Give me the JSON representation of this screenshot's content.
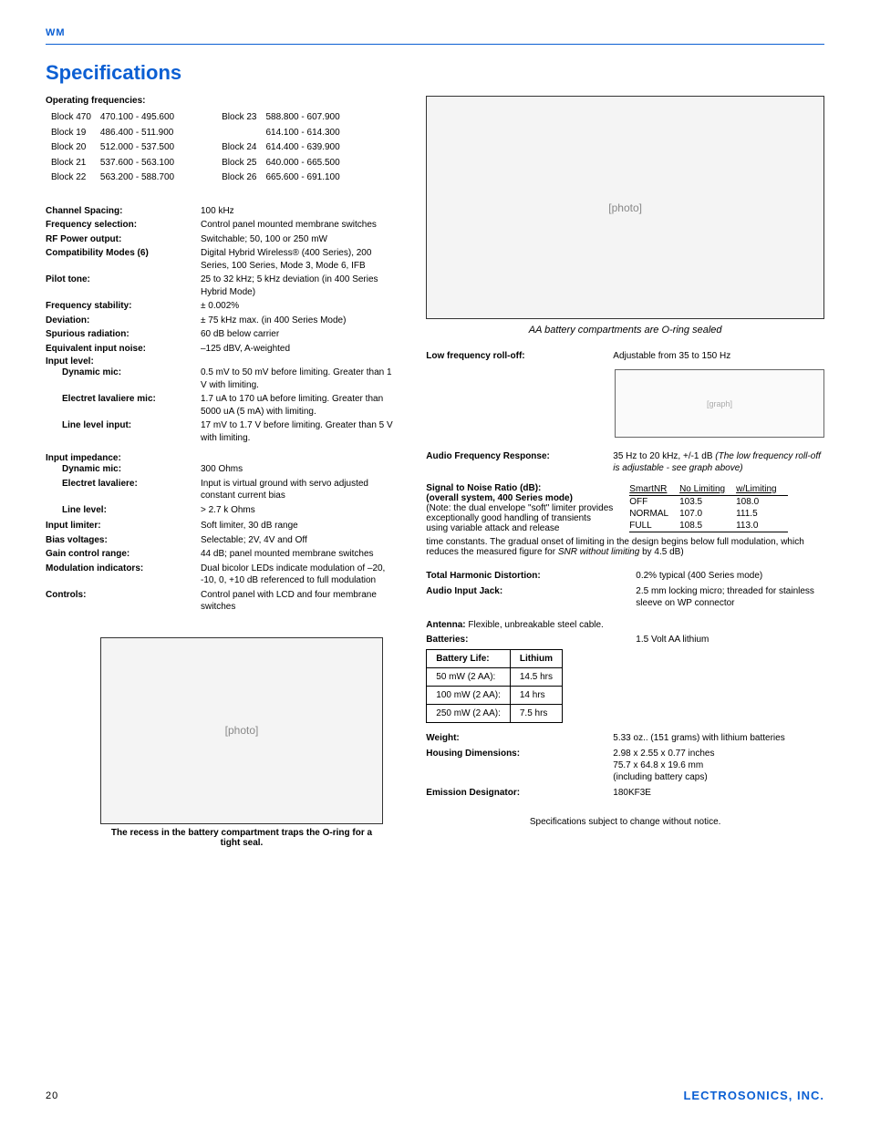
{
  "header": {
    "wm": "WM"
  },
  "title": "Specifications",
  "opFreqLabel": "Operating frequencies:",
  "freqLeft": [
    [
      "Block 470",
      "470.100 - 495.600"
    ],
    [
      "Block 19",
      "486.400 - 511.900"
    ],
    [
      "Block 20",
      "512.000 - 537.500"
    ],
    [
      "Block 21",
      "537.600 - 563.100"
    ],
    [
      "Block 22",
      "563.200 - 588.700"
    ]
  ],
  "freqRight": [
    [
      "Block 23",
      "588.800 - 607.900"
    ],
    [
      "",
      "614.100 - 614.300"
    ],
    [
      "Block 24",
      "614.400 - 639.900"
    ],
    [
      "Block 25",
      "640.000 - 665.500"
    ],
    [
      "Block 26",
      "665.600 - 691.100"
    ]
  ],
  "specs": [
    {
      "label": "Channel Spacing:",
      "value": "100 kHz"
    },
    {
      "label": "Frequency selection:",
      "value": "Control panel mounted membrane switches"
    },
    {
      "label": "RF Power output:",
      "value": "Switchable; 50, 100 or 250 mW"
    },
    {
      "label": "Compatibility Modes (6)",
      "value": "Digital Hybrid Wireless® (400 Series), 200 Series, 100 Series, Mode 3, Mode 6, IFB"
    },
    {
      "label": "Pilot tone:",
      "value": "25 to 32 kHz; 5 kHz deviation (in 400 Series Hybrid Mode)"
    },
    {
      "label": "Frequency stability:",
      "value": "± 0.002%"
    },
    {
      "label": "Deviation:",
      "value": "± 75 kHz max. (in 400 Series Mode)"
    },
    {
      "label": "Spurious radiation:",
      "value": "60 dB below carrier"
    },
    {
      "label": "Equivalent input noise:",
      "value": "–125 dBV, A-weighted"
    }
  ],
  "inputLevel": {
    "heading": "Input level:",
    "items": [
      {
        "label": "Dynamic mic:",
        "value": "0.5 mV to 50 mV before limiting. Greater than 1 V with limiting."
      },
      {
        "label": "Electret lavaliere mic:",
        "value": "1.7 uA to 170 uA before limiting. Greater than 5000 uA (5 mA) with limiting."
      },
      {
        "label": "Line level input:",
        "value": "17 mV to 1.7 V before limiting. Greater than 5 V with limiting."
      }
    ]
  },
  "inputImpedance": {
    "heading": "Input impedance:",
    "items": [
      {
        "label": "Dynamic mic:",
        "value": "300 Ohms"
      },
      {
        "label": "Electret lavaliere:",
        "value": "Input is virtual ground with servo adjusted constant current bias"
      },
      {
        "label": "Line level:",
        "value": "> 2.7 k Ohms"
      }
    ]
  },
  "specs2": [
    {
      "label": "Input limiter:",
      "value": "Soft limiter, 30 dB range"
    },
    {
      "label": "Bias voltages:",
      "value": "Selectable; 2V, 4V and Off"
    },
    {
      "label": "Gain control range:",
      "value": "44 dB; panel mounted membrane switches"
    },
    {
      "label": "Modulation indicators:",
      "value": "Dual bicolor LEDs indicate modulation of –20, -10, 0, +10 dB referenced to full modulation"
    },
    {
      "label": "Controls:",
      "value": "Control panel with LCD and four membrane switches"
    }
  ],
  "topPhotoCaption": "AA battery compartments are O-ring sealed",
  "lowFreq": {
    "label": "Low frequency roll-off:",
    "value": "Adjustable from 35 to 150 Hz"
  },
  "afr": {
    "label": "Audio Frequency Response:",
    "value": "35 Hz to 20 kHz, +/-1 dB  ",
    "ital": "(The low frequency roll-off is adjustable - see graph above)"
  },
  "snr": {
    "title1": "Signal to Noise Ratio (dB):",
    "title2": "(overall system, 400 Series mode)",
    "note": "(Note:  the dual envelope \"soft\" limiter provides exceptionally good handling of transients using variable attack and release",
    "headers": [
      "SmartNR",
      "No Limiting",
      "w/Limiting"
    ],
    "rows": [
      [
        "OFF",
        "103.5",
        "108.0"
      ],
      [
        "NORMAL",
        "107.0",
        "111.5"
      ],
      [
        "FULL",
        "108.5",
        "113.0"
      ]
    ],
    "footnote": "time constants. The gradual onset of limiting in the design begins below full modulation, which reduces the measured figure for ",
    "footnoteItal": "SNR without limiting",
    "footnote2": " by 4.5 dB)"
  },
  "thd": {
    "label": "Total Harmonic Distortion:",
    "value": "0.2% typical (400 Series mode)"
  },
  "aij": {
    "label": "Audio Input Jack:",
    "value": "2.5 mm locking micro; threaded for stainless sleeve on WP connector"
  },
  "antenna": {
    "label": "Antenna: ",
    "value": "Flexible, unbreakable steel cable."
  },
  "batteries": {
    "label": "Batteries:",
    "value": "1.5 Volt AA lithium"
  },
  "batteryTable": {
    "headers": [
      "Battery Life:",
      "Lithium"
    ],
    "rows": [
      [
        "50 mW (2 AA):",
        "14.5 hrs"
      ],
      [
        "100 mW (2 AA):",
        "14 hrs"
      ],
      [
        "250 mW (2 AA):",
        "7.5 hrs"
      ]
    ]
  },
  "weight": {
    "label": "Weight:",
    "value": "5.33 oz.. (151 grams) with lithium batteries"
  },
  "housing": {
    "label": "Housing Dimensions:",
    "value": "2.98 x 2.55 x 0.77 inches\n75.7 x 64.8 x 19.6 mm\n(including battery caps)"
  },
  "emission": {
    "label": "Emission Designator:",
    "value": "180KF3E"
  },
  "disclaimer": "Specifications subject to change without notice.",
  "bottomCaption": "The recess in the battery compartment traps the O-ring for a tight seal.",
  "footer": {
    "page": "20",
    "brand": "LECTROSONICS, INC."
  }
}
